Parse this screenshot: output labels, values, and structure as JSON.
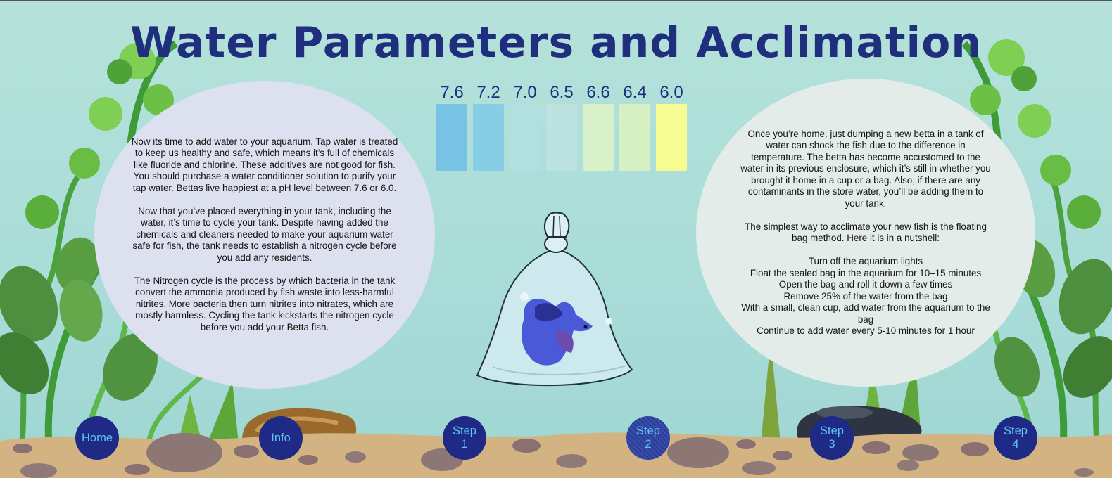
{
  "page": {
    "title": "Water Parameters and Acclimation"
  },
  "left_panel": {
    "paragraphs": [
      "Now its time to add water to your aquarium. Tap water is treated to keep us healthy and safe, which means it’s full of chemicals like fluoride and chlorine. These additives are not good for fish. You should purchase a water conditioner solution to purify your tap water. Bettas live happiest at a pH level between 7.6 or 6.0.",
      "Now that you’ve placed everything in your tank, including the water, it’s time to cycle your tank. Despite having added the chemicals and cleaners needed to make your aquarium water safe for fish, the tank needs to establish a nitrogen cycle before you add any residents.",
      "The Nitrogen cycle is the process by which bacteria in the tank convert the ammonia produced by fish waste into less-harmful nitrites. More bacteria then turn nitrites into nitrates, which are mostly harmless. Cycling the tank kickstarts the nitrogen cycle before you add your Betta fish."
    ]
  },
  "ph_scale": {
    "items": [
      {
        "label": "7.6",
        "color": "#78c3e3"
      },
      {
        "label": "7.2",
        "color": "#86cde6"
      },
      {
        "label": "7.0",
        "color": "#b2dfe0"
      },
      {
        "label": "6.5",
        "color": "#bce3df"
      },
      {
        "label": "6.6",
        "color": "#d8f1c8"
      },
      {
        "label": "6.4",
        "color": "#d6f2c4"
      },
      {
        "label": "6.0",
        "color": "#f6fc92"
      }
    ]
  },
  "right_panel": {
    "paragraphs": [
      "Once you’re home, just dumping a new betta in a tank of water can shock the fish due to the difference in temperature. The betta has become accustomed to the water in its previous enclosure, which it’s still in whether you brought it home in a cup or a bag. Also, if there are any contaminants in the store water, you’ll be adding them to your tank.",
      "The simplest way to acclimate your new fish is the floating bag method. Here it is in a nutshell:"
    ],
    "steps": [
      "Turn off the aquarium lights",
      "Float the sealed bag in the aquarium for 10–15 minutes",
      "Open the bag and roll it down a few times",
      "Remove 25% of the water from the bag",
      "With a small, clean cup, add water from the aquarium to the bag",
      "Continue to add water every 5-10 minutes for 1 hour"
    ]
  },
  "nav": {
    "home": "Home",
    "info": "Info",
    "step1": {
      "line1": "Step",
      "line2": "1"
    },
    "step2": {
      "line1": "Step",
      "line2": "2"
    },
    "step3": {
      "line1": "Step",
      "line2": "3"
    },
    "step4": {
      "line1": "Step",
      "line2": "4"
    }
  },
  "colors": {
    "accent": "#1f2f7d",
    "button": "#1e2a86",
    "button_text": "#5fc6ee"
  }
}
